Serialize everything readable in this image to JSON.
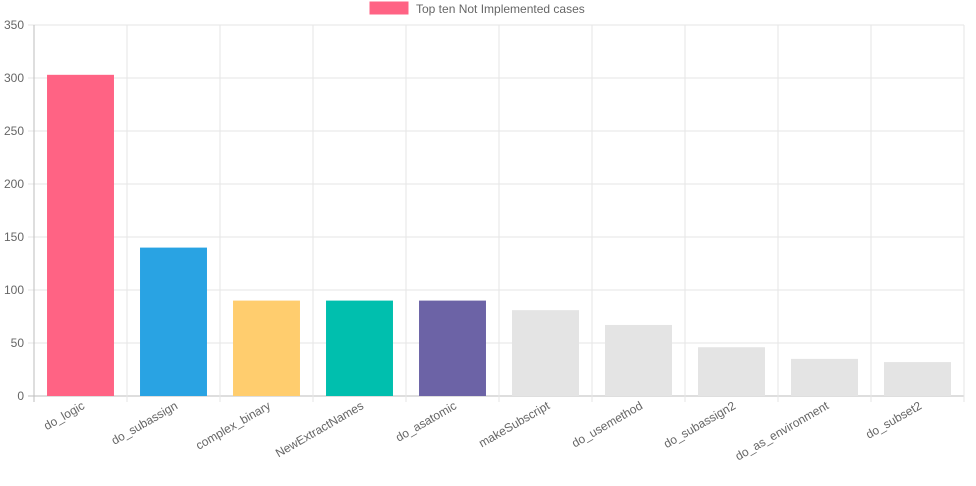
{
  "chart_data": {
    "type": "bar",
    "legend": {
      "label": "Top ten Not Implemented cases",
      "color": "#ff6384",
      "position": "top"
    },
    "categories": [
      "do_logic",
      "do_subassign",
      "complex_binary",
      "NewExtractNames",
      "do_asatomic",
      "makeSubscript",
      "do_usemethod",
      "do_subassign2",
      "do_as_environment",
      "do_subset2"
    ],
    "series": [
      {
        "name": "Top ten Not Implemented cases",
        "values": [
          303,
          140,
          90,
          90,
          90,
          81,
          67,
          46,
          35,
          32
        ],
        "colors": [
          "#ff6384",
          "#29a3e3",
          "#ffcd6e",
          "#00bfae",
          "#6c63a6",
          "#e4e4e4",
          "#e4e4e4",
          "#e4e4e4",
          "#e4e4e4",
          "#e4e4e4"
        ]
      }
    ],
    "ylim": [
      0,
      350
    ],
    "yticks": [
      0,
      50,
      100,
      150,
      200,
      250,
      300,
      350
    ],
    "grid": true,
    "xlabel": "",
    "ylabel": ""
  }
}
